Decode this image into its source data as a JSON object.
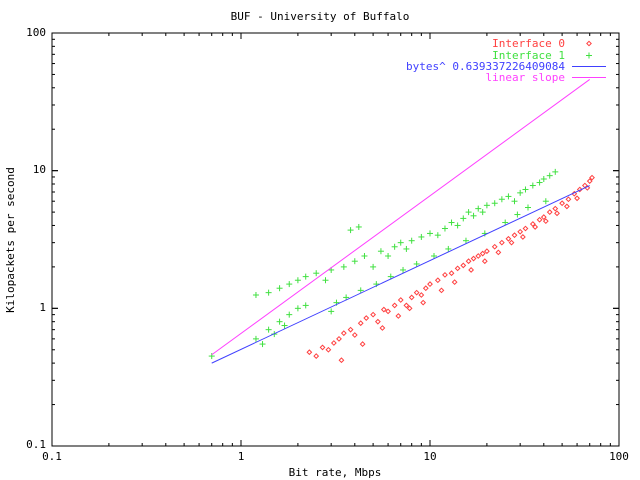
{
  "chart_data": {
    "type": "scatter",
    "title": "BUF - University of Buffalo",
    "xlabel": "Bit rate, Mbps",
    "ylabel": "Kilopackets per second",
    "x_scale": "log",
    "y_scale": "log",
    "xlim": [
      0.1,
      100
    ],
    "ylim": [
      0.1,
      100
    ],
    "x_ticks": [
      "0.1",
      "1",
      "10",
      "100"
    ],
    "y_ticks": [
      "0.1",
      "1",
      "10",
      "100"
    ],
    "grid": false,
    "legend_position": "top-right",
    "series": [
      {
        "name": "Interface 0",
        "kind": "points",
        "marker": "diamond",
        "color": "#ff4040",
        "points": [
          [
            2.3,
            0.48
          ],
          [
            2.5,
            0.45
          ],
          [
            2.7,
            0.52
          ],
          [
            2.9,
            0.5
          ],
          [
            3.1,
            0.56
          ],
          [
            3.3,
            0.6
          ],
          [
            3.5,
            0.66
          ],
          [
            3.8,
            0.7
          ],
          [
            4.0,
            0.64
          ],
          [
            4.3,
            0.78
          ],
          [
            4.6,
            0.85
          ],
          [
            5.0,
            0.9
          ],
          [
            5.3,
            0.8
          ],
          [
            5.7,
            0.98
          ],
          [
            6.0,
            0.95
          ],
          [
            6.5,
            1.05
          ],
          [
            7.0,
            1.15
          ],
          [
            7.5,
            1.05
          ],
          [
            8.0,
            1.2
          ],
          [
            8.5,
            1.3
          ],
          [
            9.0,
            1.25
          ],
          [
            9.5,
            1.4
          ],
          [
            10.0,
            1.5
          ],
          [
            11.0,
            1.6
          ],
          [
            12.0,
            1.75
          ],
          [
            13.0,
            1.8
          ],
          [
            14.0,
            1.95
          ],
          [
            15.0,
            2.05
          ],
          [
            16.0,
            2.2
          ],
          [
            17.0,
            2.3
          ],
          [
            18.0,
            2.4
          ],
          [
            19.0,
            2.5
          ],
          [
            20.0,
            2.6
          ],
          [
            22.0,
            2.8
          ],
          [
            24.0,
            3.0
          ],
          [
            26.0,
            3.2
          ],
          [
            28.0,
            3.4
          ],
          [
            30.0,
            3.6
          ],
          [
            32.0,
            3.8
          ],
          [
            35.0,
            4.1
          ],
          [
            38.0,
            4.4
          ],
          [
            40.0,
            4.6
          ],
          [
            43.0,
            5.0
          ],
          [
            46.0,
            5.3
          ],
          [
            50.0,
            5.8
          ],
          [
            54.0,
            6.2
          ],
          [
            58.0,
            6.8
          ],
          [
            62.0,
            7.3
          ],
          [
            66.0,
            7.8
          ],
          [
            70.0,
            8.4
          ],
          [
            3.4,
            0.42
          ],
          [
            4.4,
            0.55
          ],
          [
            5.6,
            0.72
          ],
          [
            6.8,
            0.88
          ],
          [
            7.8,
            1.0
          ],
          [
            9.2,
            1.1
          ],
          [
            11.5,
            1.35
          ],
          [
            13.5,
            1.55
          ],
          [
            16.5,
            1.9
          ],
          [
            19.5,
            2.2
          ],
          [
            23.0,
            2.55
          ],
          [
            27.0,
            3.0
          ],
          [
            31.0,
            3.3
          ],
          [
            36.0,
            3.9
          ],
          [
            41.0,
            4.3
          ],
          [
            47.0,
            4.9
          ],
          [
            53.0,
            5.5
          ],
          [
            60.0,
            6.3
          ],
          [
            68.0,
            7.5
          ],
          [
            72.0,
            8.9
          ]
        ]
      },
      {
        "name": "Interface 1",
        "kind": "points",
        "marker": "plus",
        "color": "#40e040",
        "points": [
          [
            0.7,
            0.45
          ],
          [
            1.2,
            0.6
          ],
          [
            1.3,
            0.55
          ],
          [
            1.4,
            0.7
          ],
          [
            1.5,
            0.65
          ],
          [
            1.6,
            0.8
          ],
          [
            1.7,
            0.75
          ],
          [
            1.8,
            0.9
          ],
          [
            2.0,
            1.0
          ],
          [
            2.2,
            1.05
          ],
          [
            1.2,
            1.25
          ],
          [
            1.4,
            1.3
          ],
          [
            1.6,
            1.4
          ],
          [
            1.8,
            1.5
          ],
          [
            2.0,
            1.6
          ],
          [
            2.2,
            1.7
          ],
          [
            2.5,
            1.8
          ],
          [
            2.8,
            1.6
          ],
          [
            3.0,
            1.9
          ],
          [
            3.5,
            2.0
          ],
          [
            4.0,
            2.2
          ],
          [
            4.5,
            2.4
          ],
          [
            5.0,
            2.0
          ],
          [
            5.5,
            2.6
          ],
          [
            6.0,
            2.4
          ],
          [
            6.5,
            2.8
          ],
          [
            7.0,
            3.0
          ],
          [
            7.5,
            2.7
          ],
          [
            8.0,
            3.1
          ],
          [
            9.0,
            3.3
          ],
          [
            3.8,
            3.7
          ],
          [
            4.2,
            3.9
          ],
          [
            10.0,
            3.5
          ],
          [
            11.0,
            3.4
          ],
          [
            12.0,
            3.8
          ],
          [
            13.0,
            4.2
          ],
          [
            14.0,
            4.0
          ],
          [
            15.0,
            4.5
          ],
          [
            16.0,
            5.0
          ],
          [
            17.0,
            4.7
          ],
          [
            18.0,
            5.3
          ],
          [
            19.0,
            5.0
          ],
          [
            20.0,
            5.6
          ],
          [
            22.0,
            5.8
          ],
          [
            24.0,
            6.2
          ],
          [
            26.0,
            6.5
          ],
          [
            28.0,
            6.0
          ],
          [
            30.0,
            6.9
          ],
          [
            32.0,
            7.3
          ],
          [
            35.0,
            7.8
          ],
          [
            38.0,
            8.2
          ],
          [
            40.0,
            8.7
          ],
          [
            43.0,
            9.2
          ],
          [
            46.0,
            9.8
          ],
          [
            3.0,
            0.95
          ],
          [
            3.2,
            1.1
          ],
          [
            3.6,
            1.2
          ],
          [
            4.3,
            1.35
          ],
          [
            5.2,
            1.5
          ],
          [
            6.2,
            1.7
          ],
          [
            7.2,
            1.9
          ],
          [
            8.5,
            2.1
          ],
          [
            10.5,
            2.4
          ],
          [
            12.5,
            2.7
          ],
          [
            15.5,
            3.1
          ],
          [
            19.5,
            3.5
          ],
          [
            25.0,
            4.2
          ],
          [
            29.0,
            4.8
          ],
          [
            33.0,
            5.4
          ],
          [
            41.0,
            6.0
          ]
        ]
      },
      {
        "name": "bytes^ 0.639337226409084",
        "kind": "line",
        "color": "#4040ff",
        "points": [
          [
            0.7,
            0.4
          ],
          [
            70,
            7.8
          ]
        ]
      },
      {
        "name": "linear slope",
        "kind": "line",
        "color": "#ff40ff",
        "points": [
          [
            0.7,
            0.46
          ],
          [
            70,
            46
          ]
        ]
      }
    ]
  }
}
